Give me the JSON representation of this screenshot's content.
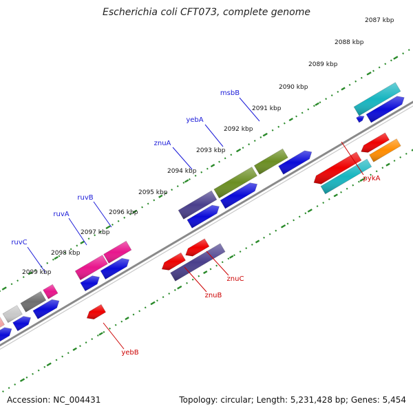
{
  "header": {
    "title": "Escherichia coli CFT073, complete genome"
  },
  "footer": {
    "accession": "Accession: NC_004431",
    "summary": "Topology: circular; Length: 5,231,428 bp; Genes: 5,454"
  },
  "colors": {
    "backbone": "#8a8a8a",
    "ruler": "#2a8a2a",
    "cds_forward": "#0a0ad8",
    "gene_red": "#ee0000",
    "gene_magenta": "#e8158c",
    "gene_olive": "#6b8e23",
    "gene_slate": "#4a3f8c",
    "gene_teal": "#17b5c0",
    "gene_orange": "#ff8c00",
    "gene_grey": "#6e6e6e",
    "gene_pink": "#f2a3a3",
    "forward_label": "#1a1ad8",
    "reverse_label": "#cc0000",
    "tick_label": "#111111"
  },
  "ticks": [
    {
      "label": "2087 kbp"
    },
    {
      "label": "2088 kbp"
    },
    {
      "label": "2089 kbp"
    },
    {
      "label": "2090 kbp"
    },
    {
      "label": "2091 kbp"
    },
    {
      "label": "2092 kbp"
    },
    {
      "label": "2093 kbp"
    },
    {
      "label": "2094 kbp"
    },
    {
      "label": "2095 kbp"
    },
    {
      "label": "2096 kbp"
    },
    {
      "label": "2097 kbp"
    },
    {
      "label": "2098 kbp"
    },
    {
      "label": "2099 kbp"
    }
  ],
  "forward_genes": [
    "msbB",
    "yebA",
    "znuA",
    "ruvB",
    "ruvA",
    "ruvC"
  ],
  "reverse_genes": [
    "pykA",
    "znuC",
    "znuB",
    "yebB"
  ]
}
